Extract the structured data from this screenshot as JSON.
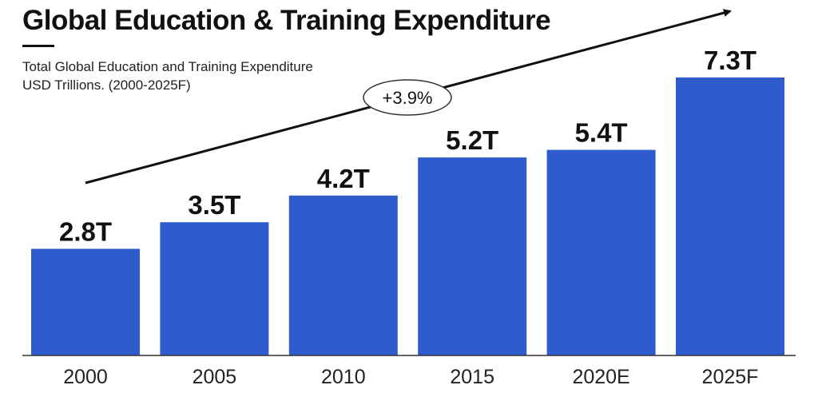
{
  "header": {
    "title": "Global Education & Training Expenditure",
    "subtitle_line1": "Total Global Education and Training Expenditure",
    "subtitle_line2": "USD Trillions. (2000-2025F)"
  },
  "annotation": {
    "growth_label": "+3.9%"
  },
  "colors": {
    "bar": "#2f5ccc",
    "text": "#111111",
    "axis": "#333333"
  },
  "chart_data": {
    "type": "bar",
    "categories": [
      "2000",
      "2005",
      "2010",
      "2015",
      "2020E",
      "2025F"
    ],
    "values": [
      2.8,
      3.5,
      4.2,
      5.2,
      5.4,
      7.3
    ],
    "data_labels": [
      "2.8T",
      "3.5T",
      "4.2T",
      "5.2T",
      "5.4T",
      "7.3T"
    ],
    "title": "Global Education & Training Expenditure",
    "subtitle": "Total Global Education and Training Expenditure USD Trillions. (2000-2025F)",
    "xlabel": "",
    "ylabel": "",
    "ylim": [
      0,
      7.3
    ],
    "grid": false,
    "legend": "none"
  }
}
